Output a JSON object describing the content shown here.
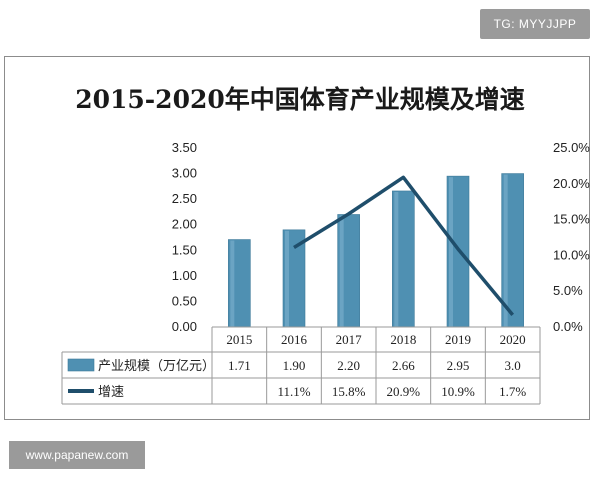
{
  "watermark_top": "TG: MYYJJPP",
  "watermark_bottom": "www.papanew.com",
  "chart_data": {
    "type": "bar",
    "title": "2015-2020年中国体育产业规模及增速",
    "categories": [
      "2015",
      "2016",
      "2017",
      "2018",
      "2019",
      "2020"
    ],
    "left_axis": {
      "min": 0,
      "max": 3.5,
      "ticks": [
        "0.00",
        "0.50",
        "1.00",
        "1.50",
        "2.00",
        "2.50",
        "3.00",
        "3.50"
      ]
    },
    "right_axis": {
      "min": 0,
      "max": 25,
      "ticks": [
        "0.0%",
        "5.0%",
        "10.0%",
        "15.0%",
        "20.0%",
        "25.0%"
      ]
    },
    "series": [
      {
        "name": "产业规模（万亿元）",
        "type": "bar",
        "axis": "left",
        "values": [
          1.71,
          1.9,
          2.2,
          2.66,
          2.95,
          3.0
        ],
        "labels": [
          "1.71",
          "1.90",
          "2.20",
          "2.66",
          "2.95",
          "3.0"
        ],
        "color": "#4f90b2"
      },
      {
        "name": "增速",
        "type": "line",
        "axis": "right",
        "values": [
          null,
          11.1,
          15.8,
          20.9,
          10.9,
          1.7
        ],
        "labels": [
          "",
          "11.1%",
          "15.8%",
          "20.9%",
          "10.9%",
          "1.7%"
        ],
        "color": "#1f4e6b"
      }
    ],
    "grid": false,
    "legend": "data-table"
  }
}
